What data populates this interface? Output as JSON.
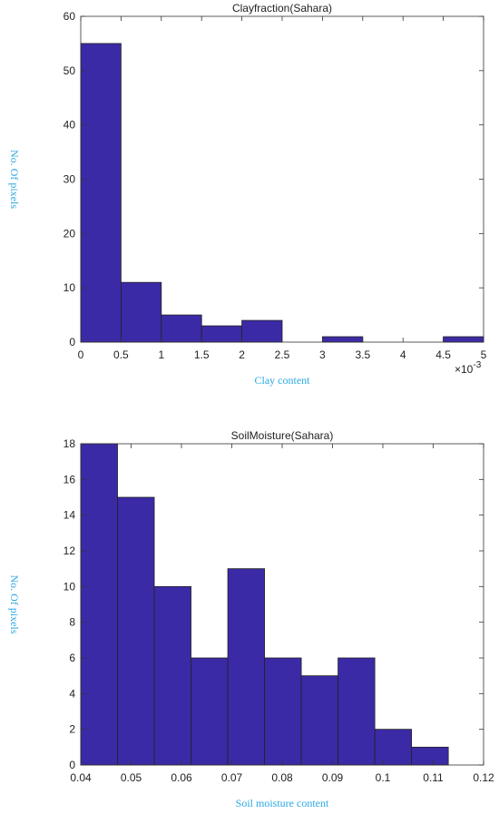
{
  "chart_data": [
    {
      "type": "histogram",
      "title": "Clayfraction(Sahara)",
      "xlabel": "Clay content",
      "ylabel": "No. Of pixels",
      "x_multiplier": {
        "base": "×10",
        "exponent": "-3"
      },
      "bins": [
        0,
        0.5,
        1,
        1.5,
        2,
        2.5,
        3,
        3.5,
        4,
        4.5,
        5
      ],
      "values": [
        55,
        11,
        5,
        3,
        4,
        0,
        1,
        0,
        0,
        1
      ],
      "color": "#3b2aa6",
      "xlim": [
        0,
        5
      ],
      "xticks": [
        0,
        0.5,
        1,
        1.5,
        2,
        2.5,
        3,
        3.5,
        4,
        4.5,
        5
      ],
      "ylim": [
        0,
        60
      ],
      "yticks": [
        0,
        10,
        20,
        30,
        40,
        50,
        60
      ]
    },
    {
      "type": "histogram",
      "title": "SoilMoisture(Sahara)",
      "xlabel": "Soil moisture content",
      "ylabel": "No. Of pixels",
      "bins": [
        0.04,
        0.0473,
        0.0546,
        0.0619,
        0.0692,
        0.0765,
        0.0838,
        0.0911,
        0.0984,
        0.1057,
        0.113
      ],
      "values": [
        18,
        15,
        10,
        6,
        11,
        6,
        5,
        6,
        2,
        1
      ],
      "color": "#3b2aa6",
      "xlim": [
        0.04,
        0.12
      ],
      "xticks": [
        0.04,
        0.05,
        0.06,
        0.07,
        0.08,
        0.09,
        0.1,
        0.11,
        0.12
      ],
      "ylim": [
        0,
        18
      ],
      "yticks": [
        0,
        2,
        4,
        6,
        8,
        10,
        12,
        14,
        16,
        18
      ]
    }
  ]
}
